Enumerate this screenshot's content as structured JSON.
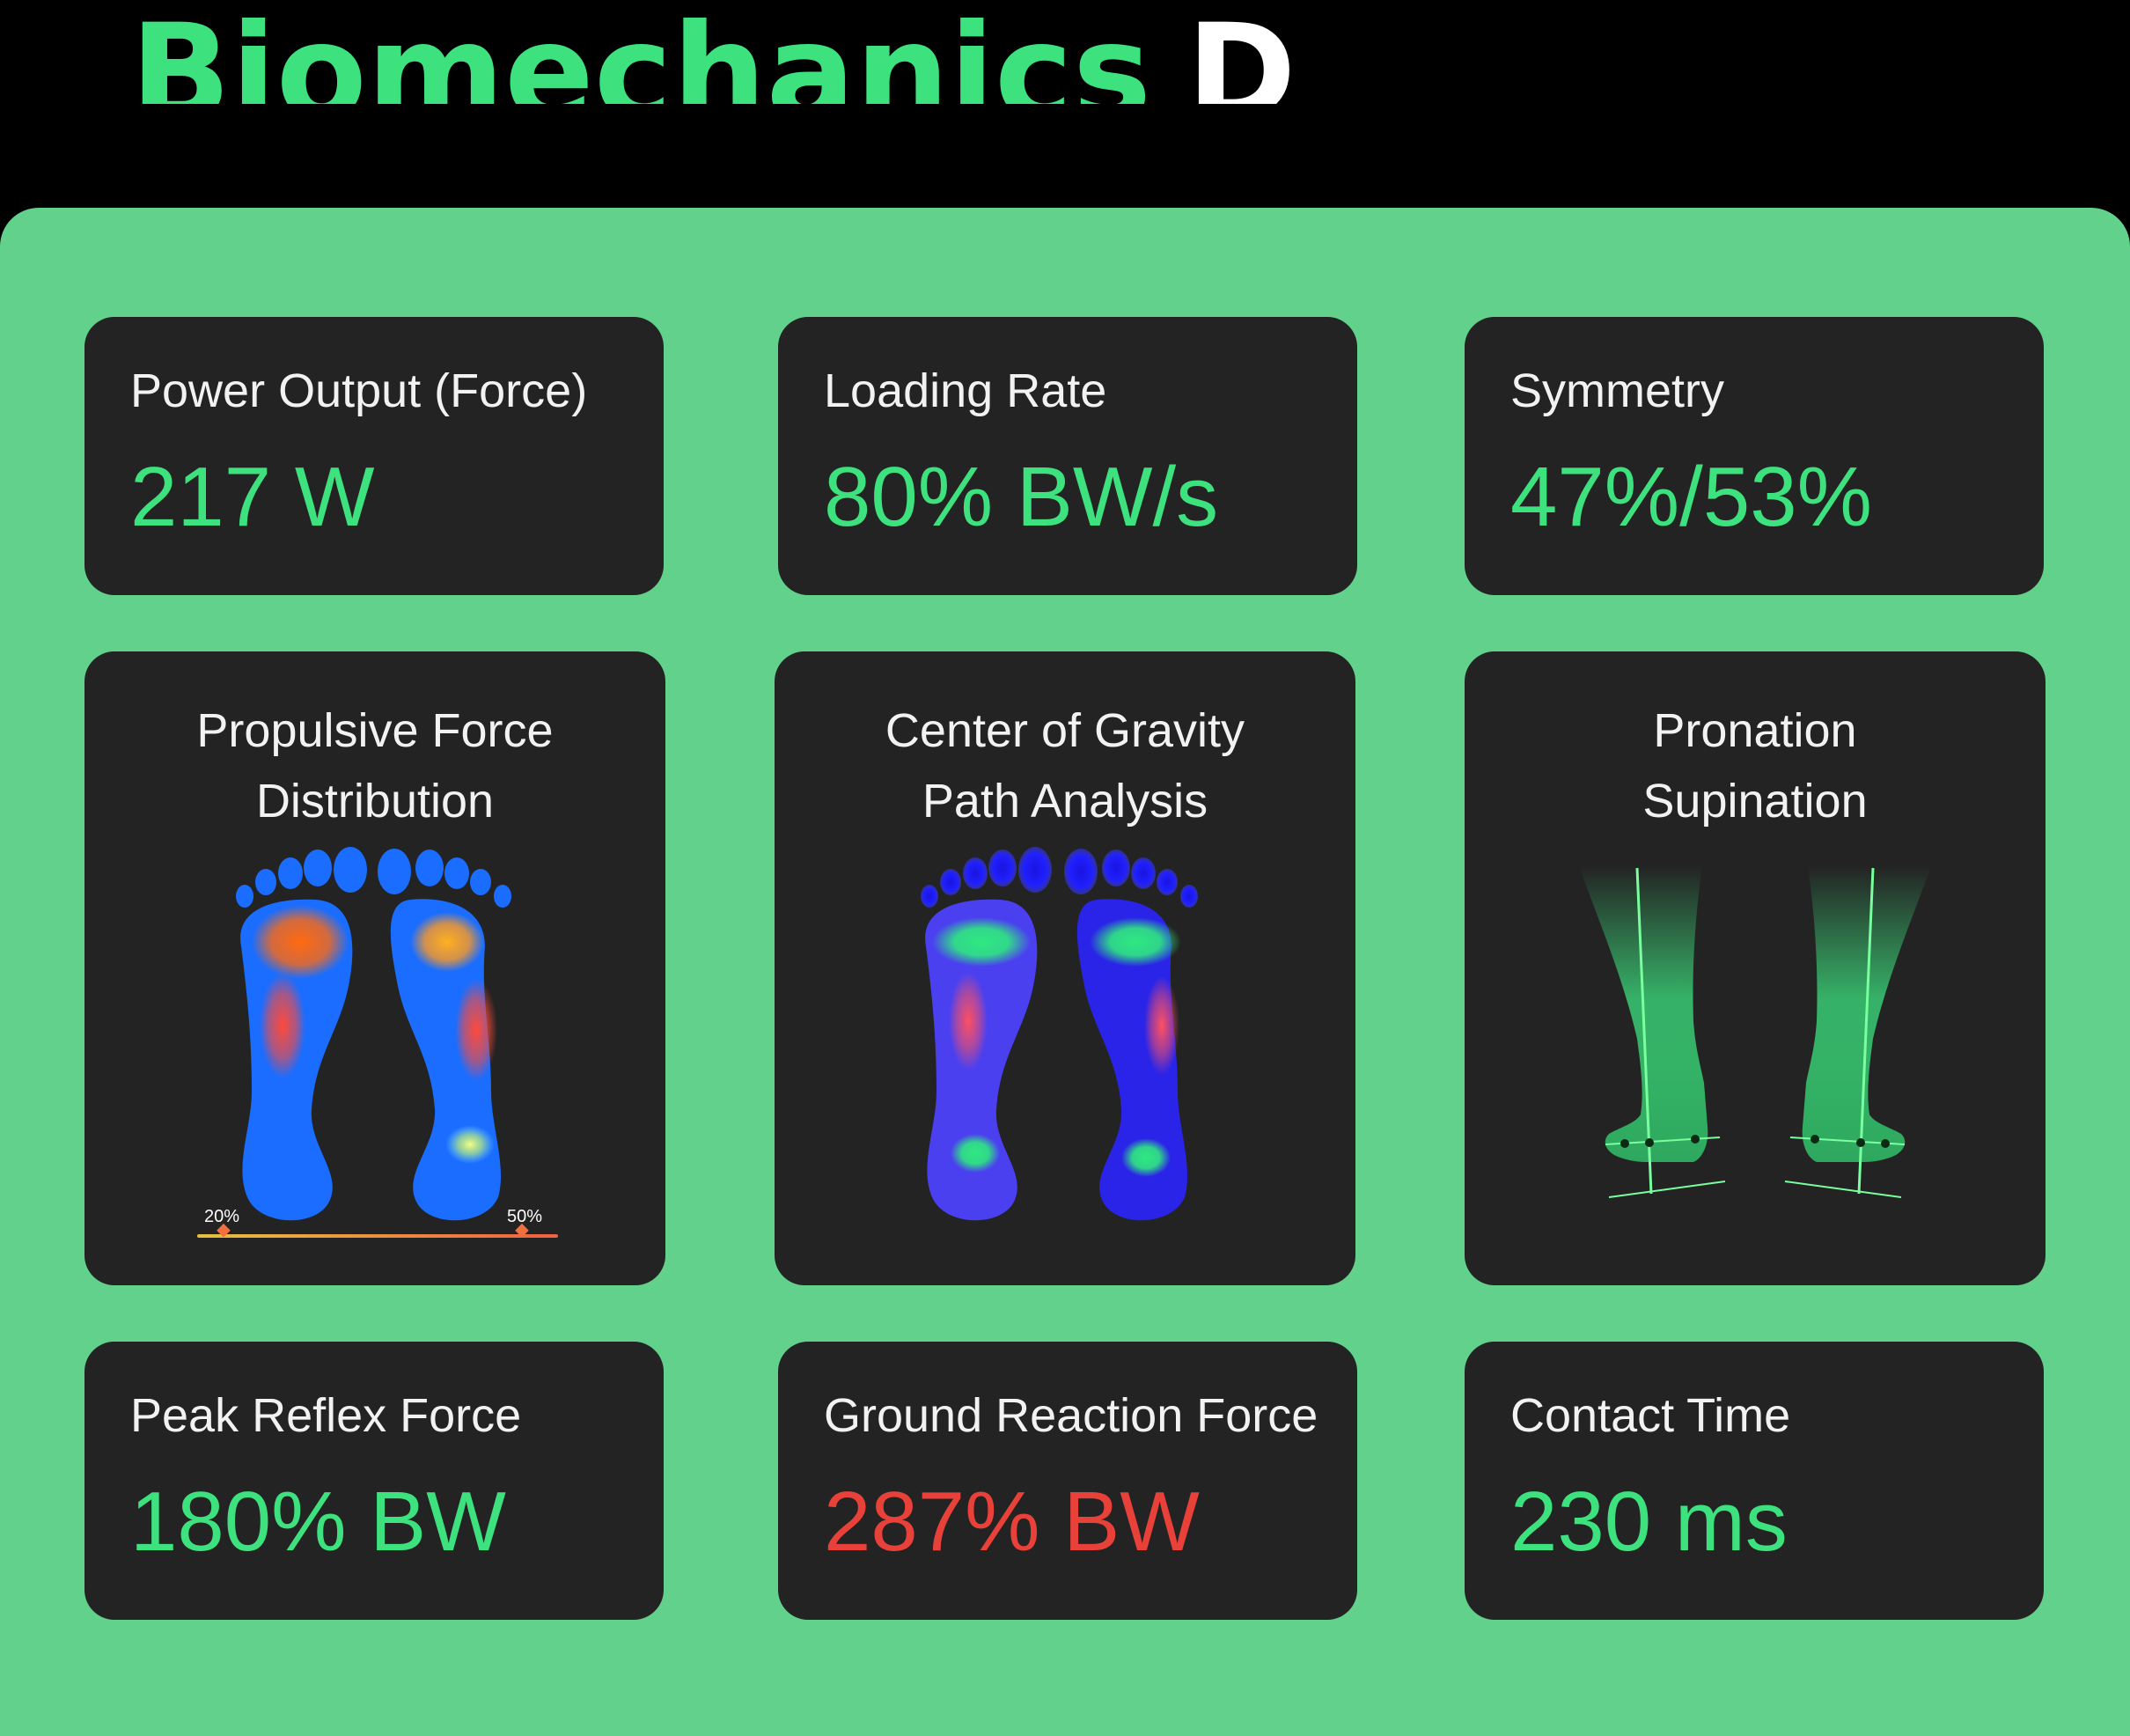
{
  "header": {
    "title_highlight": "Biomechanics",
    "title_rest": "Data"
  },
  "metrics": {
    "power_output": {
      "label": "Power Output (Force)",
      "value": "217 W"
    },
    "loading_rate": {
      "label": "Loading Rate",
      "value": "80% BW/s"
    },
    "symmetry": {
      "label": "Symmetry",
      "value": "47%/53%"
    },
    "peak_reflex": {
      "label": "Peak Reflex Force",
      "value": "180% BW"
    },
    "ground_reaction": {
      "label": "Ground Reaction Force",
      "value": "287% BW"
    },
    "contact_time": {
      "label": "Contact Time",
      "value": "230 ms"
    }
  },
  "visuals": {
    "propulsive": {
      "title_line1": "Propulsive Force",
      "title_line2": "Distribution",
      "scale_min_label": "20%",
      "scale_max_label": "50%",
      "scale_min_value": 20,
      "scale_max_value": 50
    },
    "cog": {
      "title_line1": "Center of Gravity",
      "title_line2": "Path Analysis"
    },
    "pronation": {
      "title_line1": "Pronation",
      "title_line2": "Supination"
    }
  },
  "colors": {
    "accent_green": "#3de27f",
    "panel_green": "#62d18c",
    "card_bg": "#232323",
    "alert_red": "#e8413a"
  }
}
